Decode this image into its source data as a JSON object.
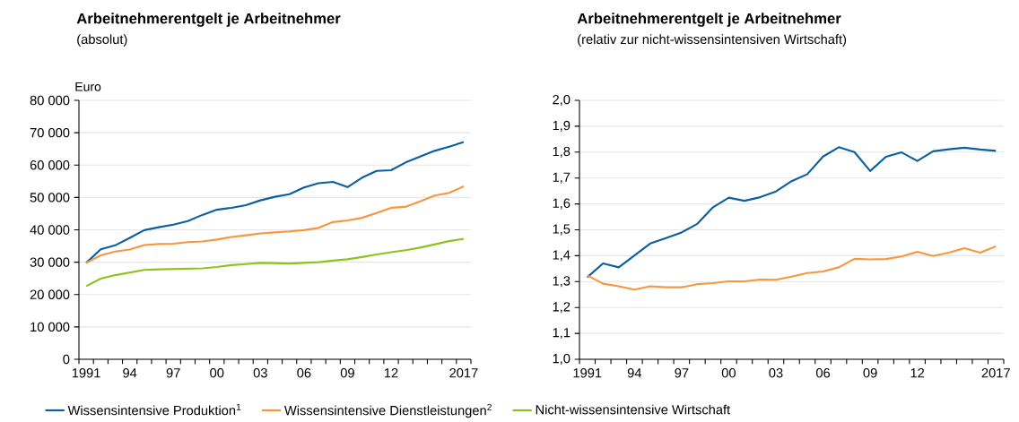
{
  "chart_data": [
    {
      "type": "line",
      "title": "Arbeitnehmerentgelt je Arbeitnehmer",
      "subtitle": "(absolut)",
      "ylabel": "Euro",
      "categories": [
        "1991",
        null,
        null,
        "94",
        null,
        null,
        "97",
        null,
        null,
        "00",
        null,
        null,
        "03",
        null,
        null,
        "06",
        null,
        null,
        "09",
        null,
        null,
        "12",
        null,
        null,
        null,
        null,
        "2017"
      ],
      "series": [
        {
          "name": "Wissensintensive Produktion$^{1}$",
          "color": "#0a5fa0",
          "values": [
            29800,
            34000,
            35200,
            37500,
            39900,
            40800,
            41600,
            42700,
            44600,
            46200,
            46800,
            47600,
            49100,
            50200,
            51000,
            53100,
            54400,
            54800,
            53200,
            56100,
            58200,
            58400,
            60800,
            62600,
            64400,
            65700,
            67100
          ]
        },
        {
          "name": "Wissensintensive Dienstleistungen$^{2}$",
          "color": "#f7963d",
          "values": [
            29800,
            32100,
            33300,
            33900,
            35300,
            35600,
            35700,
            36200,
            36400,
            37000,
            37800,
            38300,
            38900,
            39200,
            39500,
            39900,
            40600,
            42400,
            42900,
            43700,
            45200,
            46800,
            47100,
            48800,
            50600,
            51400,
            53400
          ]
        },
        {
          "name": "Nicht-wissensintensive Wirtschaft",
          "color": "#8dc21f",
          "values": [
            22600,
            24900,
            26000,
            26800,
            27600,
            27800,
            27900,
            28000,
            28100,
            28500,
            29100,
            29400,
            29800,
            29700,
            29600,
            29800,
            30000,
            30500,
            30900,
            31600,
            32400,
            33100,
            33700,
            34500,
            35500,
            36500,
            37200
          ]
        }
      ],
      "ylim": [
        0,
        80000
      ],
      "yticks": [
        0,
        {
          "value": 10000,
          "label": "10 000"
        },
        {
          "value": 20000,
          "label": "20 000"
        },
        {
          "value": 30000,
          "label": "30 000"
        },
        {
          "value": 40000,
          "label": "40 000"
        },
        {
          "value": 50000,
          "label": "50 000"
        },
        {
          "value": 60000,
          "label": "60 000"
        },
        {
          "value": 70000,
          "label": "70 000"
        },
        {
          "value": 80000,
          "label": "80 000"
        }
      ],
      "grid": "y",
      "legend": "bottom"
    },
    {
      "type": "line",
      "title": "Arbeitnehmerentgelt je Arbeitnehmer",
      "subtitle": "(relativ zur nicht-wissensintensiven Wirtschaft)",
      "categories": [
        "1991",
        null,
        null,
        "94",
        null,
        null,
        "97",
        null,
        null,
        "00",
        null,
        null,
        "03",
        null,
        null,
        "06",
        null,
        null,
        "09",
        null,
        null,
        "12",
        null,
        null,
        null,
        null,
        "2017"
      ],
      "series": [
        {
          "color": "#0a5fa0",
          "values": [
            1.317,
            1.37,
            1.355,
            1.401,
            1.447,
            1.468,
            1.49,
            1.523,
            1.587,
            1.624,
            1.612,
            1.626,
            1.648,
            1.688,
            1.715,
            1.783,
            1.819,
            1.8,
            1.727,
            1.782,
            1.799,
            1.766,
            1.803,
            1.811,
            1.817,
            1.81,
            1.805
          ]
        },
        {
          "color": "#f7963d",
          "values": [
            1.324,
            1.292,
            1.282,
            1.269,
            1.282,
            1.278,
            1.278,
            1.29,
            1.294,
            1.301,
            1.301,
            1.308,
            1.307,
            1.319,
            1.333,
            1.339,
            1.355,
            1.388,
            1.386,
            1.387,
            1.397,
            1.415,
            1.399,
            1.412,
            1.429,
            1.412,
            1.436
          ]
        }
      ],
      "ylim": [
        1.0,
        2.0
      ],
      "yticks": [
        {
          "value": 1.0,
          "label": "1,0"
        },
        {
          "value": 1.1,
          "label": "1,1"
        },
        {
          "value": 1.2,
          "label": "1,2"
        },
        {
          "value": 1.3,
          "label": "1,3"
        },
        {
          "value": 1.4,
          "label": "1,4"
        },
        {
          "value": 1.5,
          "label": "1,5"
        },
        {
          "value": 1.6,
          "label": "1,6"
        },
        {
          "value": 1.7,
          "label": "1,7"
        },
        {
          "value": 1.8,
          "label": "1,8"
        },
        {
          "value": 1.9,
          "label": "1,9"
        },
        {
          "value": 2.0,
          "label": "2,0"
        }
      ],
      "grid": "y"
    }
  ]
}
